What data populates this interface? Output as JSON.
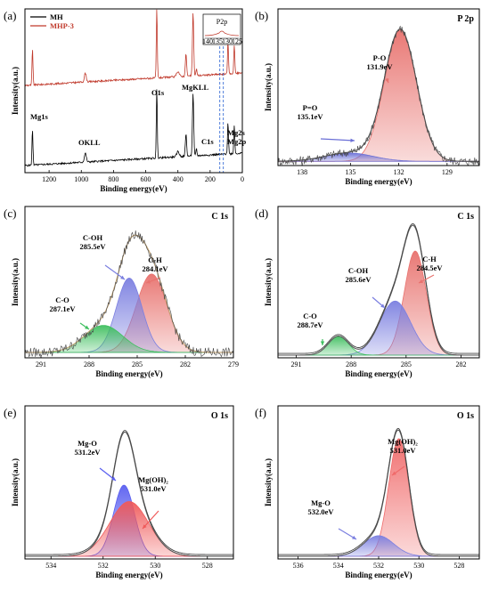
{
  "chart_data": [
    {
      "id": "a",
      "type": "line",
      "panel_label": "(a)",
      "xlabel": "Binding energy(eV)",
      "ylabel": "Intensity(a.u.)",
      "xlim": [
        1350,
        0
      ],
      "xticks": [
        1200,
        1000,
        800,
        600,
        400,
        200,
        0
      ],
      "series": [
        {
          "name": "MH",
          "color": "#000000"
        },
        {
          "name": "MHP-3",
          "color": "#c0392b"
        }
      ],
      "peaks_x": [
        1303,
        975,
        531,
        306,
        285,
        89,
        50
      ],
      "annotations": [
        {
          "text": "Mg1s",
          "x": 1303
        },
        {
          "text": "OKLL",
          "x": 975
        },
        {
          "text": "O1s",
          "x": 531
        },
        {
          "text": "MgKLL",
          "x": 306
        },
        {
          "text": "C1s",
          "x": 285
        },
        {
          "text": "Mg2s",
          "x": 89
        },
        {
          "text": "Mg2p",
          "x": 50
        }
      ],
      "inset": {
        "title": "P2p",
        "xticks": [
          "140",
          "135",
          "130",
          "125"
        ]
      }
    },
    {
      "id": "b",
      "type": "area",
      "panel_label": "(b)",
      "title": "P 2p",
      "xlabel": "Binding energy(eV)",
      "ylabel": "Intensity(a.u.)",
      "xlim": [
        139.5,
        127
      ],
      "xticks": [
        138,
        135,
        132,
        129
      ],
      "ylim": [
        0,
        1.12
      ],
      "baseline": 0.03,
      "noise": 0.03,
      "envelope": "sum",
      "series": [
        {
          "name": "P-O",
          "label": "P-O\n131.9eV",
          "center": 131.9,
          "height": 0.94,
          "width": 1.0,
          "color": "#e8726e"
        },
        {
          "name": "P=O",
          "label": "P=O\n135.1eV",
          "center": 135.1,
          "height": 0.06,
          "width": 1.5,
          "color": "#6a6fd6"
        }
      ]
    },
    {
      "id": "c",
      "type": "area",
      "panel_label": "(c)",
      "title": "C 1s",
      "xlabel": "Binding energy(eV)",
      "ylabel": "Intensity(a.u.)",
      "xlim": [
        292,
        279
      ],
      "xticks": [
        291,
        288,
        285,
        282,
        279
      ],
      "ylim": [
        0,
        1.12
      ],
      "baseline": 0.04,
      "noise": 0.035,
      "envelope": "sum",
      "envelope_color": "#c0a070",
      "series": [
        {
          "name": "C-H",
          "label": "C-H\n284.1eV",
          "center": 284.1,
          "height": 0.58,
          "width": 0.95,
          "color": "#e8726e"
        },
        {
          "name": "C-OH",
          "label": "C-OH\n285.5eV",
          "center": 285.5,
          "height": 0.55,
          "width": 0.8,
          "color": "#7b7fe0"
        },
        {
          "name": "C-O",
          "label": "C-O\n287.1eV",
          "center": 287.1,
          "height": 0.2,
          "width": 1.2,
          "color": "#3fbf5f"
        }
      ]
    },
    {
      "id": "d",
      "type": "area",
      "panel_label": "(d)",
      "title": "C 1s",
      "xlabel": "Binding energy(eV)",
      "ylabel": "Intensity(a.u.)",
      "xlim": [
        292,
        281
      ],
      "xticks": [
        291,
        288,
        285,
        282
      ],
      "ylim": [
        0,
        1.12
      ],
      "baseline": 0.02,
      "noise": 0.0,
      "envelope": "sum",
      "series": [
        {
          "name": "C-H",
          "label": "C-H\n284.5eV",
          "center": 284.5,
          "height": 0.77,
          "width": 0.6,
          "color": "#e8726e"
        },
        {
          "name": "C-OH",
          "label": "C-OH\n285.6eV",
          "center": 285.6,
          "height": 0.4,
          "width": 0.85,
          "color": "#7b7fe0"
        },
        {
          "name": "C-O",
          "label": "C-O\n288.7eV",
          "center": 288.7,
          "height": 0.14,
          "width": 0.55,
          "color": "#3fbf5f"
        }
      ]
    },
    {
      "id": "e",
      "type": "area",
      "panel_label": "(e)",
      "title": "O 1s",
      "xlabel": "Binding energy(eV)",
      "ylabel": "Intensity(a.u.)",
      "xlim": [
        535,
        527
      ],
      "xticks": [
        534,
        532,
        530,
        528
      ],
      "ylim": [
        0,
        1.12
      ],
      "baseline": 0.02,
      "noise": 0.0,
      "envelope": "sum",
      "series": [
        {
          "name": "Mg-O",
          "label": "Mg-O\n531.2eV",
          "center": 531.2,
          "height": 0.52,
          "width": 0.4,
          "color": "#5a5ff0"
        },
        {
          "name": "Mg(OH)2",
          "label": "Mg(OH)₂\n531.0eV",
          "center": 531.0,
          "height": 0.4,
          "width": 0.75,
          "color": "#f05a5a"
        }
      ]
    },
    {
      "id": "f",
      "type": "area",
      "panel_label": "(f)",
      "title": "O 1s",
      "xlabel": "Binding energy(eV)",
      "ylabel": "Intensity(a.u.)",
      "xlim": [
        537,
        527
      ],
      "xticks": [
        536,
        534,
        532,
        530,
        528
      ],
      "ylim": [
        0,
        1.12
      ],
      "baseline": 0.02,
      "noise": 0.0,
      "envelope": "sum",
      "series": [
        {
          "name": "Mg(OH)2",
          "label": "Mg(OH)₂\n531.0eV",
          "center": 531.0,
          "height": 0.86,
          "width": 0.5,
          "color": "#f06a6a"
        },
        {
          "name": "Mg-O",
          "label": "Mg-O\n532.0eV",
          "center": 532.0,
          "height": 0.15,
          "width": 0.75,
          "color": "#7b7fe0"
        }
      ]
    }
  ]
}
